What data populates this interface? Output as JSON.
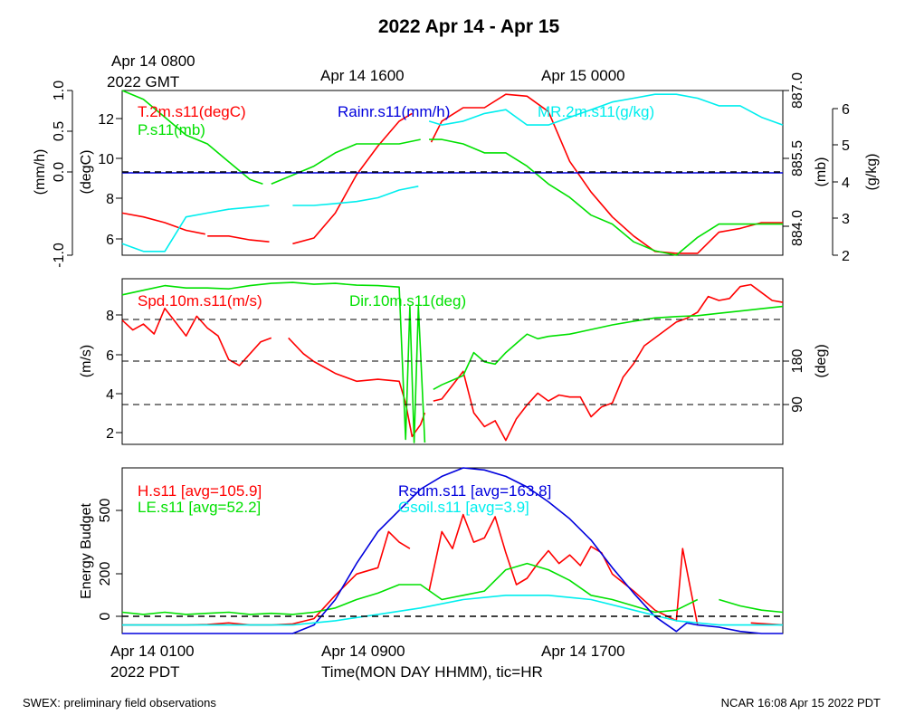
{
  "title": "2022 Apr 14 - Apr 15",
  "top_time_labels": [
    "Apr 14 0800",
    "2022 GMT",
    "Apr 14 1600",
    "Apr 15 0000"
  ],
  "bottom_time_labels": [
    "Apr 14 0100",
    "2022 PDT",
    "Apr 14 0900",
    "Apr 14 1700"
  ],
  "xlabel": "Time(MON DAY HHMM), tic=HR",
  "footer_left": "SWEX: preliminary field observations",
  "footer_right": "NCAR 16:08 Apr 15 2022 PDT",
  "colors": {
    "red": "#ff0000",
    "green": "#00e000",
    "blue": "#0000dd",
    "cyan": "#00eeee",
    "black": "#000000"
  },
  "chart_data": [
    {
      "type": "line",
      "panel": "top",
      "x_unit": "hours since Apr 14 0100 PDT",
      "xlim": [
        0,
        31
      ],
      "axes": {
        "rain": {
          "label": "(mm/h)",
          "ticks": [
            "1.0",
            "0.5",
            "0.0",
            "-1.0"
          ],
          "tick_values": [
            1.0,
            0.5,
            0.0,
            -1.0
          ],
          "ylim": [
            -1.0,
            1.0
          ]
        },
        "temp": {
          "label": "(degC)",
          "ticks": [
            "12",
            "10",
            "8",
            "6"
          ],
          "ylim": [
            5.3,
            13.9
          ]
        },
        "pres": {
          "label": "(mb)",
          "ticks": [
            "887.0",
            "885.5",
            "884.0"
          ],
          "ylim": [
            883.3,
            887.0
          ]
        },
        "mr": {
          "label": "(g/kg)",
          "ticks": [
            "6",
            "5",
            "4",
            "3",
            "2"
          ],
          "ylim": [
            2,
            6.3
          ]
        }
      },
      "legend": [
        "T.2m.s11(degC)",
        "Rainr.s11(mm/h)",
        "MR.2m.s11(g/kg)",
        "P.s11(mb)"
      ],
      "series": [
        {
          "name": "T.2m.s11(degC)",
          "axis": "temp",
          "color": "#ff0000",
          "x": [
            0,
            1,
            2,
            3,
            3.9,
            null,
            4,
            5,
            6,
            6.9,
            null,
            8,
            9,
            10,
            11,
            12,
            13,
            13.6,
            null,
            14.5,
            15,
            16,
            17,
            18,
            19,
            20,
            21,
            22,
            23,
            24,
            25,
            26,
            27,
            28,
            29,
            30,
            31
          ],
          "y": [
            7.5,
            7.3,
            7.0,
            6.6,
            6.4,
            null,
            6.3,
            6.3,
            6.1,
            6.0,
            null,
            5.9,
            6.2,
            7.5,
            9.5,
            11.0,
            12.3,
            12.7,
            null,
            11.2,
            12.3,
            13.0,
            13.0,
            13.7,
            13.6,
            12.8,
            10.2,
            8.6,
            7.3,
            6.3,
            5.5,
            5.4,
            5.4,
            6.5,
            6.7,
            7.0,
            7.0
          ]
        },
        {
          "name": "P.s11(mb)",
          "axis": "pres",
          "color": "#00e000",
          "x": [
            0,
            1,
            2,
            3,
            4,
            5,
            6,
            6.6,
            null,
            7,
            8,
            9,
            10,
            11,
            12,
            13,
            14,
            null,
            14.4,
            15,
            16,
            17,
            18,
            19,
            20,
            21,
            22,
            23,
            24,
            25,
            26,
            27,
            28,
            29,
            30,
            31
          ],
          "y": [
            887.0,
            886.8,
            886.4,
            886.0,
            885.8,
            885.4,
            885.0,
            884.9,
            null,
            884.9,
            885.1,
            885.3,
            885.6,
            885.8,
            885.8,
            885.8,
            885.9,
            null,
            885.9,
            885.9,
            885.8,
            885.6,
            885.6,
            885.3,
            884.9,
            884.6,
            884.2,
            884.0,
            883.6,
            883.4,
            883.3,
            883.7,
            884.0,
            884.0,
            884.0,
            884.0
          ]
        },
        {
          "name": "MR.2m.s11(g/kg)",
          "axis": "mr",
          "color": "#00eeee",
          "x": [
            0,
            1,
            2,
            3,
            4,
            5,
            6,
            6.9,
            null,
            8,
            9,
            10,
            11,
            12,
            13,
            13.9,
            null,
            14.4,
            15,
            16,
            17,
            18,
            19,
            20,
            21,
            22,
            23,
            24,
            25,
            26,
            27,
            28,
            29,
            30,
            31
          ],
          "y": [
            2.3,
            2.1,
            2.1,
            3.0,
            3.1,
            3.2,
            3.25,
            3.3,
            null,
            3.3,
            3.3,
            3.35,
            3.4,
            3.5,
            3.7,
            3.8,
            null,
            5.5,
            5.4,
            5.5,
            5.7,
            5.8,
            5.4,
            5.4,
            5.6,
            5.8,
            6.0,
            6.1,
            6.2,
            6.2,
            6.1,
            5.9,
            5.9,
            5.6,
            5.4
          ]
        },
        {
          "name": "Rainr.s11(mm/h)",
          "axis": "rain",
          "color": "#0000dd",
          "x": [
            0,
            31
          ],
          "y": [
            0.0,
            0.0
          ]
        }
      ]
    },
    {
      "type": "line",
      "panel": "middle",
      "x_unit": "hours since Apr 14 0100 PDT",
      "xlim": [
        0,
        31
      ],
      "axes": {
        "spd": {
          "label": "(m/s)",
          "ticks": [
            "8",
            "6",
            "4",
            "2"
          ],
          "tick_values": [
            8,
            6,
            4,
            2
          ],
          "ylim": [
            1.4,
            9.8
          ]
        },
        "dir": {
          "label": "(deg)",
          "ticks": [
            "180",
            "90"
          ],
          "tick_values": [
            180,
            90
          ],
          "ylim": [
            1,
            360
          ]
        }
      },
      "ref_lines_spd": [
        7.9,
        5.8,
        3.6
      ],
      "legend": [
        "Spd.10m.s11(m/s)",
        "Dir.10m.s11(deg)"
      ],
      "series": [
        {
          "name": "Spd.10m.s11(m/s)",
          "axis": "spd",
          "color": "#ff0000",
          "x": [
            0,
            0.5,
            1,
            1.5,
            2,
            2.5,
            3,
            3.5,
            4,
            4.5,
            5,
            5.5,
            6,
            6.5,
            7,
            null,
            7.8,
            8.5,
            9,
            9.5,
            10,
            11,
            12,
            13,
            13.3,
            13.6,
            14,
            14.2,
            null,
            14.6,
            15,
            16,
            16.5,
            17,
            17.5,
            18,
            18.5,
            19,
            19.5,
            20,
            20.5,
            21,
            21.5,
            22,
            22.5,
            23,
            23.5,
            24,
            24.5,
            25,
            25.5,
            26,
            26.5,
            27,
            27.5,
            28,
            28.5,
            29,
            29.5,
            30,
            30.5,
            31
          ],
          "y": [
            7.7,
            7.2,
            7.5,
            7.0,
            8.3,
            7.6,
            6.9,
            7.9,
            7.3,
            6.9,
            5.7,
            5.4,
            6.0,
            6.6,
            6.8,
            null,
            6.8,
            6.0,
            5.6,
            5.3,
            5.0,
            4.6,
            4.7,
            4.6,
            3.5,
            1.8,
            2.4,
            3.0,
            null,
            3.6,
            3.7,
            5.1,
            3.0,
            2.3,
            2.6,
            1.6,
            2.7,
            3.4,
            4.0,
            3.6,
            3.9,
            3.8,
            3.8,
            2.8,
            3.3,
            3.5,
            4.8,
            5.5,
            6.4,
            6.8,
            7.2,
            7.6,
            7.8,
            8.1,
            8.9,
            8.7,
            8.8,
            9.4,
            9.5,
            9.1,
            8.7,
            8.6
          ]
        },
        {
          "name": "Dir.10m.s11(deg)",
          "axis": "dir",
          "color": "#00e000",
          "x": [
            0,
            1,
            2,
            3,
            4,
            5,
            6,
            7,
            8,
            9,
            10,
            11,
            12,
            13,
            13.3,
            13.5,
            13.7,
            13.9,
            14.2,
            null,
            14.6,
            15,
            16,
            16.5,
            17,
            17.5,
            18,
            18.5,
            19,
            19.5,
            20,
            21,
            22,
            23,
            24,
            25,
            26,
            27,
            28,
            29,
            30,
            31
          ],
          "y": [
            325,
            335,
            345,
            340,
            340,
            338,
            345,
            350,
            352,
            348,
            350,
            346,
            345,
            342,
            12,
            300,
            5,
            300,
            5,
            null,
            120,
            130,
            150,
            200,
            180,
            175,
            200,
            220,
            240,
            230,
            235,
            240,
            250,
            260,
            268,
            275,
            278,
            280,
            285,
            290,
            295,
            300
          ]
        }
      ]
    },
    {
      "type": "line",
      "panel": "bottom",
      "x_unit": "hours since Apr 14 0100 PDT",
      "xlim": [
        0,
        31
      ],
      "ylabel": "Energy Budget",
      "ticks": [
        "500",
        "200",
        "0"
      ],
      "tick_values": [
        500,
        200,
        0
      ],
      "ylim": [
        -80,
        700
      ],
      "legend": [
        "H.s11 [avg=105.9]",
        "LE.s11 [avg=52.2]",
        "Rsum.s11 [avg=163.8]",
        "Gsoil.s11 [avg=3.9]"
      ],
      "series": [
        {
          "name": "H.s11 [avg=105.9]",
          "color": "#ff0000",
          "x": [
            0,
            1,
            2,
            3,
            4,
            5,
            6,
            7,
            8,
            9,
            10,
            11,
            12,
            12.5,
            13,
            13.5,
            null,
            14.4,
            15,
            15.5,
            16,
            16.5,
            17,
            17.5,
            18,
            18.5,
            19,
            19.5,
            20,
            20.5,
            21,
            21.5,
            22,
            22.5,
            23,
            24,
            25,
            26,
            26.3,
            27,
            null,
            29.5,
            31
          ],
          "y": [
            -40,
            -40,
            -40,
            -40,
            -38,
            -30,
            -40,
            -40,
            -35,
            -10,
            100,
            200,
            230,
            400,
            350,
            320,
            null,
            120,
            400,
            320,
            480,
            350,
            370,
            470,
            300,
            150,
            180,
            250,
            310,
            250,
            290,
            240,
            330,
            300,
            200,
            120,
            30,
            -20,
            320,
            -40,
            null,
            -30,
            -40
          ]
        },
        {
          "name": "LE.s11 [avg=52.2]",
          "color": "#00e000",
          "x": [
            0,
            1,
            2,
            3,
            4,
            5,
            6,
            7,
            8,
            9,
            10,
            11,
            12,
            13,
            14,
            15,
            16,
            17,
            18,
            19,
            20,
            21,
            22,
            23,
            24,
            25,
            26,
            27,
            null,
            28,
            29,
            30,
            31
          ],
          "y": [
            20,
            10,
            20,
            10,
            15,
            20,
            10,
            15,
            10,
            20,
            40,
            80,
            110,
            150,
            150,
            80,
            100,
            120,
            220,
            250,
            220,
            170,
            100,
            80,
            50,
            20,
            30,
            80,
            null,
            80,
            50,
            30,
            20
          ]
        },
        {
          "name": "Rsum.s11 [avg=163.8]",
          "color": "#0000dd",
          "x": [
            0,
            5,
            8,
            9,
            10,
            11,
            12,
            13,
            14,
            15,
            16,
            17,
            18,
            19,
            20,
            21,
            22,
            23,
            24,
            25,
            26,
            26.5,
            27,
            28,
            29,
            30,
            31
          ],
          "y": [
            -80,
            -80,
            -80,
            -40,
            80,
            250,
            400,
            500,
            600,
            660,
            700,
            690,
            660,
            610,
            540,
            460,
            360,
            230,
            110,
            0,
            -70,
            -30,
            -40,
            -50,
            -70,
            -80,
            -80
          ]
        },
        {
          "name": "Gsoil.s11 [avg=3.9]",
          "color": "#00eeee",
          "x": [
            0,
            4,
            8,
            10,
            12,
            14,
            16,
            18,
            20,
            22,
            24,
            26,
            28,
            31
          ],
          "y": [
            -40,
            -40,
            -40,
            -20,
            10,
            40,
            80,
            100,
            100,
            80,
            30,
            -20,
            -40,
            -40
          ]
        }
      ]
    }
  ]
}
